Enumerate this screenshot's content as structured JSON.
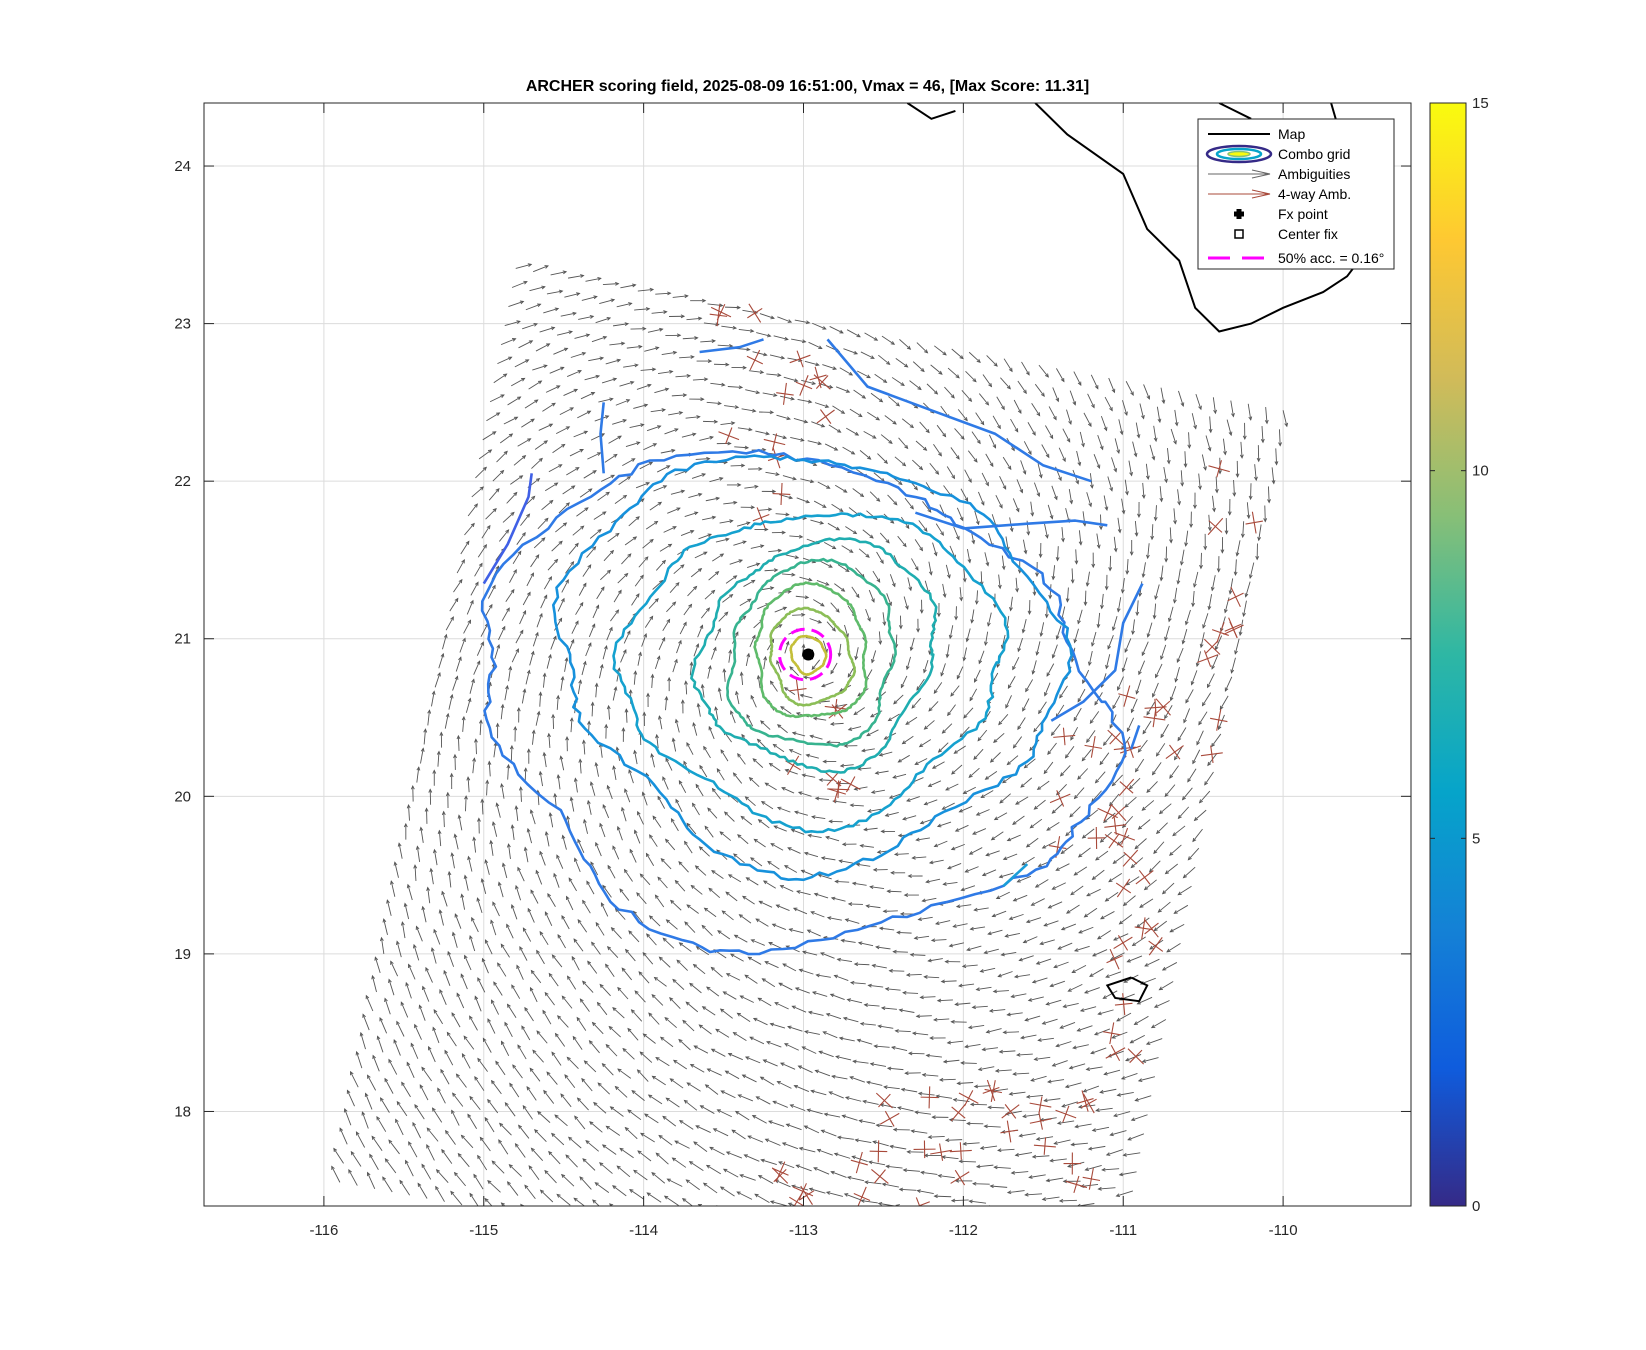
{
  "chart_data": {
    "type": "contour",
    "title": "ARCHER scoring field, 2025-08-09 16:51:00, Vmax = 46, [Max Score: 11.31]",
    "xlabel": "",
    "ylabel": "",
    "xlim": [
      -116.75,
      -109.2
    ],
    "ylim": [
      17.4,
      24.4
    ],
    "x_ticks": [
      -116,
      -115,
      -114,
      -113,
      -112,
      -111,
      -110
    ],
    "y_ticks": [
      18,
      19,
      20,
      21,
      22,
      23,
      24
    ],
    "grid": true,
    "colorbar": {
      "range": [
        0,
        15
      ],
      "ticks": [
        0,
        5,
        10,
        15
      ],
      "colormap": "parula",
      "colors": [
        "#352a87",
        "#0f5cdd",
        "#1481d6",
        "#06a4ca",
        "#2eb7a4",
        "#87bf77",
        "#d1bb59",
        "#fec832",
        "#f9fb0e"
      ]
    },
    "legend": {
      "position": "top-right",
      "entries": [
        {
          "label": "Map",
          "symbol": "black-line"
        },
        {
          "label": "Combo grid",
          "symbol": "filled-ellipse"
        },
        {
          "label": "Ambiguities",
          "symbol": "gray-arrow"
        },
        {
          "label": "4-way Amb.",
          "symbol": "brown-arrow"
        },
        {
          "label": "Fx point",
          "symbol": "black-plus"
        },
        {
          "label": "Center fix",
          "symbol": "open-square"
        },
        {
          "label": "50% acc. = 0.16°",
          "symbol": "magenta-dashed"
        }
      ]
    },
    "fx_point": {
      "lon": -112.97,
      "lat": 20.9
    },
    "center_fix": {
      "lon": -112.97,
      "lat": 20.9
    },
    "accuracy_circle": {
      "lon": -112.99,
      "lat": 20.9,
      "radius_deg": 0.16,
      "color": "#ff00ff"
    },
    "swath": {
      "corners": [
        [
          -114.8,
          23.35
        ],
        [
          -110.0,
          22.45
        ],
        [
          -111.0,
          17.3
        ],
        [
          -115.9,
          17.55
        ]
      ]
    },
    "storm_center": {
      "lon": -112.97,
      "lat": 20.9
    },
    "contours": [
      {
        "level": 4.2,
        "color": "#2f7ae6",
        "rx": 1.92,
        "ry": 1.55,
        "cx": -113.05,
        "cy": 20.6
      },
      {
        "level": 5.2,
        "color": "#1791dc",
        "rx": 1.43,
        "ry": 1.32,
        "cx": -112.95,
        "cy": 20.9
      },
      {
        "level": 6.0,
        "color": "#15a1cf",
        "rx": 1.08,
        "ry": 1.0,
        "cx": -112.95,
        "cy": 20.85
      },
      {
        "level": 7.0,
        "color": "#1fadb0",
        "rx": 0.72,
        "ry": 0.72,
        "cx": -112.92,
        "cy": 20.9
      },
      {
        "level": 8.0,
        "color": "#37b38f",
        "rx": 0.55,
        "ry": 0.58,
        "cx": -112.95,
        "cy": 20.88
      },
      {
        "level": 9.0,
        "color": "#5fbb6b",
        "rx": 0.38,
        "ry": 0.42,
        "cx": -112.95,
        "cy": 20.9
      },
      {
        "level": 10.0,
        "color": "#8cbe57",
        "rx": 0.26,
        "ry": 0.3,
        "cx": -112.95,
        "cy": 20.88
      },
      {
        "level": 11.0,
        "color": "#c4bf3a",
        "rx": 0.1,
        "ry": 0.12,
        "cx": -112.97,
        "cy": 20.9
      }
    ],
    "extra_contours": [
      {
        "color": "#2f7ae6",
        "points": [
          [
            -113.65,
            22.82
          ],
          [
            -113.4,
            22.85
          ],
          [
            -113.25,
            22.9
          ]
        ]
      },
      {
        "color": "#2f7ae6",
        "points": [
          [
            -112.85,
            22.9
          ],
          [
            -112.6,
            22.6
          ],
          [
            -112.2,
            22.45
          ],
          [
            -111.8,
            22.3
          ],
          [
            -111.5,
            22.1
          ],
          [
            -111.2,
            22.0
          ]
        ]
      },
      {
        "color": "#2f7ae6",
        "points": [
          [
            -112.3,
            21.8
          ],
          [
            -112.0,
            21.7
          ],
          [
            -111.6,
            21.73
          ],
          [
            -111.3,
            21.75
          ],
          [
            -111.1,
            21.72
          ]
        ]
      },
      {
        "color": "#4060e6",
        "points": [
          [
            -115.0,
            21.35
          ],
          [
            -114.85,
            21.6
          ],
          [
            -114.72,
            21.9
          ],
          [
            -114.7,
            22.05
          ]
        ]
      },
      {
        "color": "#2f7ae6",
        "points": [
          [
            -114.25,
            22.5
          ],
          [
            -114.27,
            22.3
          ],
          [
            -114.25,
            22.05
          ]
        ]
      },
      {
        "color": "#2f7ae6",
        "points": [
          [
            -110.88,
            21.35
          ],
          [
            -111.0,
            21.1
          ],
          [
            -111.05,
            20.8
          ],
          [
            -111.25,
            20.6
          ],
          [
            -111.45,
            20.48
          ]
        ]
      },
      {
        "color": "#2f7ae6",
        "points": [
          [
            -110.9,
            20.45
          ],
          [
            -110.95,
            20.3
          ]
        ]
      },
      {
        "color": "#1a9ed8",
        "points": [
          [
            -111.6,
            19.57
          ],
          [
            -111.75,
            19.43
          ]
        ]
      }
    ],
    "coastlines": [
      [
        [
          -111.55,
          24.4
        ],
        [
          -111.35,
          24.2
        ],
        [
          -111.0,
          23.95
        ],
        [
          -110.85,
          23.6
        ],
        [
          -110.65,
          23.4
        ],
        [
          -110.55,
          23.1
        ],
        [
          -110.4,
          22.95
        ],
        [
          -110.2,
          23.0
        ],
        [
          -110.0,
          23.1
        ],
        [
          -109.75,
          23.2
        ],
        [
          -109.6,
          23.3
        ],
        [
          -109.45,
          23.5
        ],
        [
          -109.5,
          23.75
        ],
        [
          -109.6,
          24.05
        ],
        [
          -109.7,
          24.4
        ]
      ],
      [
        [
          -112.35,
          24.4
        ],
        [
          -112.2,
          24.3
        ],
        [
          -112.05,
          24.35
        ]
      ],
      [
        [
          -110.4,
          24.4
        ],
        [
          -110.3,
          24.35
        ],
        [
          -110.2,
          24.3
        ]
      ],
      [
        [
          -110.95,
          18.85
        ],
        [
          -110.85,
          18.8
        ],
        [
          -110.9,
          18.7
        ],
        [
          -111.05,
          18.72
        ],
        [
          -111.1,
          18.8
        ],
        [
          -110.95,
          18.85
        ]
      ]
    ]
  }
}
